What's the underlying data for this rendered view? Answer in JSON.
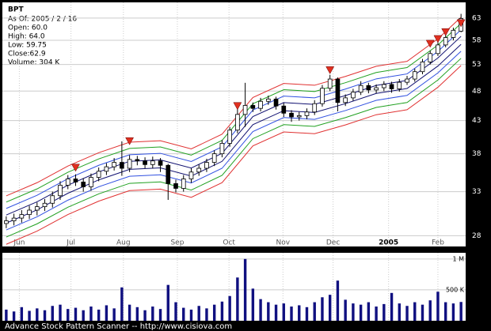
{
  "chart_data": {
    "type": "candlestick",
    "title": "BPT",
    "info": [
      "As Of: 2005 / 2 / 16",
      "Open: 60.0",
      "High: 64.0",
      "Low: 59.75",
      "Close:62.9",
      "Volume: 304 K"
    ],
    "footer": "Advance Stock Pattern Scanner -- http://www.cisiova.com",
    "log_scale": true,
    "grid": true,
    "candle_color": "#000000",
    "xlim": [
      -0.5,
      59.6
    ],
    "xticks": [
      {
        "value": 1.7,
        "label": "Jun"
      },
      {
        "value": 8.4,
        "label": "Jul"
      },
      {
        "value": 15.2,
        "label": "Aug"
      },
      {
        "value": 22.2,
        "label": "Sep"
      },
      {
        "value": 28.9,
        "label": "Oct"
      },
      {
        "value": 35.9,
        "label": "Nov"
      },
      {
        "value": 42.4,
        "label": "Dec"
      },
      {
        "value": 49.6,
        "label": "2005"
      },
      {
        "value": 56.0,
        "label": "Feb"
      }
    ],
    "ylim": [
      26.9,
      66.8
    ],
    "yticks": [
      28,
      33,
      38,
      43,
      48,
      53,
      58,
      63
    ],
    "open": [
      29.3,
      29.6,
      29.9,
      30.3,
      30.8,
      31.2,
      31.6,
      32.5,
      33.8,
      34.6,
      34.2,
      33.6,
      34.8,
      35.6,
      36.2,
      36.8,
      36.0,
      37.2,
      37.0,
      36.5,
      37.0,
      36.4,
      34.0,
      33.4,
      34.6,
      35.5,
      36.0,
      36.8,
      38.0,
      39.5,
      41.5,
      44.0,
      45.5,
      45.0,
      46.2,
      46.6,
      45.4,
      44.2,
      43.6,
      43.8,
      44.4,
      45.8,
      48.5,
      50.2,
      46.0,
      46.8,
      47.8,
      49.0,
      48.2,
      48.6,
      49.2,
      48.4,
      49.6,
      50.2,
      51.6,
      53.5,
      55.2,
      57.0,
      58.6,
      60.0
    ],
    "high": [
      30.1,
      30.4,
      30.8,
      31.3,
      31.7,
      32.1,
      33.0,
      34.3,
      35.1,
      35.2,
      34.7,
      35.3,
      36.1,
      36.7,
      37.4,
      39.8,
      37.8,
      37.7,
      37.5,
      37.6,
      37.4,
      36.6,
      34.5,
      35.1,
      36.0,
      36.5,
      37.3,
      38.5,
      40.0,
      42.0,
      45.0,
      49.5,
      46.0,
      46.8,
      47.2,
      47.0,
      45.9,
      44.7,
      44.4,
      45.0,
      46.4,
      49.1,
      51.0,
      50.5,
      47.4,
      48.4,
      49.8,
      49.5,
      49.2,
      49.8,
      49.7,
      50.2,
      50.8,
      52.2,
      54.1,
      55.8,
      57.6,
      59.2,
      60.8,
      64.0
    ],
    "low": [
      28.8,
      29.1,
      29.4,
      29.8,
      30.2,
      30.7,
      31.1,
      32.0,
      33.3,
      33.7,
      33.0,
      33.1,
      34.3,
      35.1,
      35.7,
      35.0,
      35.5,
      36.4,
      36.0,
      36.0,
      35.5,
      32.0,
      32.9,
      33.0,
      34.1,
      35.0,
      35.5,
      36.3,
      37.5,
      39.0,
      41.0,
      42.0,
      44.4,
      44.5,
      45.6,
      44.8,
      43.6,
      42.8,
      43.0,
      43.2,
      43.9,
      45.3,
      48.0,
      44.5,
      45.4,
      46.3,
      47.3,
      47.6,
      47.6,
      48.0,
      47.7,
      47.9,
      49.1,
      49.7,
      51.1,
      53.0,
      54.7,
      56.5,
      58.0,
      59.75
    ],
    "close": [
      29.6,
      29.9,
      30.3,
      30.8,
      31.2,
      31.6,
      32.5,
      33.8,
      34.6,
      34.2,
      33.6,
      34.8,
      35.6,
      36.2,
      36.8,
      36.0,
      37.2,
      37.0,
      36.5,
      37.0,
      36.4,
      34.0,
      33.4,
      34.6,
      35.5,
      36.0,
      36.8,
      38.0,
      39.5,
      41.5,
      44.0,
      45.5,
      45.0,
      46.2,
      46.6,
      45.4,
      44.2,
      43.6,
      43.8,
      44.4,
      45.8,
      48.5,
      50.2,
      46.0,
      46.8,
      47.8,
      49.0,
      48.2,
      48.6,
      49.2,
      48.4,
      49.6,
      50.2,
      51.6,
      53.5,
      55.2,
      57.0,
      58.6,
      60.2,
      62.9
    ],
    "envelope": {
      "x": [
        0,
        4,
        8,
        12,
        16,
        20,
        24,
        28,
        32,
        36,
        40,
        44,
        48,
        52,
        56,
        59
      ],
      "center": [
        29.8,
        31.3,
        33.3,
        35.0,
        36.4,
        36.6,
        35.5,
        37.5,
        43.0,
        45.3,
        45.0,
        46.5,
        48.3,
        49.2,
        53.5,
        58.0
      ],
      "bands": [
        {
          "color": "#e03030",
          "factor": 1.09
        },
        {
          "color": "#20a020",
          "factor": 1.065
        },
        {
          "color": "#3050e0",
          "factor": 1.04
        },
        {
          "color": "#101070",
          "factor": 1.015
        },
        {
          "color": "#101070",
          "factor": 0.985
        },
        {
          "color": "#3050e0",
          "factor": 0.96
        },
        {
          "color": "#20a020",
          "factor": 0.935
        },
        {
          "color": "#e03030",
          "factor": 0.91
        }
      ]
    },
    "signals": [
      {
        "x": 9,
        "value": 35.6
      },
      {
        "x": 16,
        "value": 39.3
      },
      {
        "x": 30,
        "value": 44.8
      },
      {
        "x": 42,
        "value": 51.2
      },
      {
        "x": 55,
        "value": 56.5
      },
      {
        "x": 56,
        "value": 57.5
      },
      {
        "x": 57,
        "value": 59
      },
      {
        "x": 59,
        "value": 61
      }
    ],
    "signal_color": "#e03020",
    "volume": {
      "color": "#101080",
      "ylim": [
        0,
        1100000
      ],
      "yticks": [
        {
          "value": 1000000,
          "label": "1 M"
        },
        {
          "value": 500000,
          "label": "500 K"
        }
      ],
      "values": [
        180000,
        150000,
        220000,
        160000,
        200000,
        170000,
        240000,
        260000,
        190000,
        210000,
        170000,
        230000,
        180000,
        250000,
        200000,
        540000,
        260000,
        220000,
        170000,
        230000,
        190000,
        580000,
        300000,
        210000,
        180000,
        240000,
        200000,
        260000,
        310000,
        400000,
        700000,
        1000000,
        520000,
        350000,
        300000,
        260000,
        280000,
        230000,
        250000,
        220000,
        300000,
        380000,
        420000,
        650000,
        340000,
        280000,
        260000,
        300000,
        230000,
        270000,
        450000,
        280000,
        240000,
        300000,
        260000,
        330000,
        470000,
        300000,
        280000,
        304000
      ]
    }
  }
}
